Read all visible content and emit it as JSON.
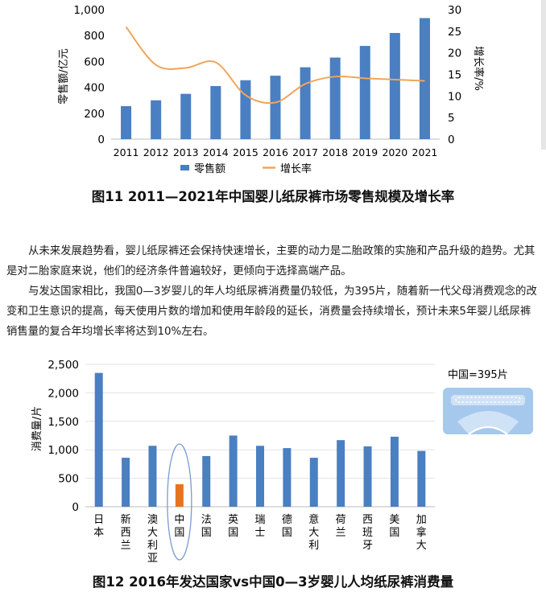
{
  "figure1": {
    "caption": "图11  2011—2021年中国婴儿纸尿裤市场零售规模及增长率",
    "chart_data": {
      "type": "bar",
      "categories": [
        "2011",
        "2012",
        "2013",
        "2014",
        "2015",
        "2016",
        "2017",
        "2018",
        "2019",
        "2020",
        "2021"
      ],
      "series": [
        {
          "name": "零售额",
          "type": "bar",
          "axis": "left",
          "color": "#4a7fc1",
          "values": [
            255,
            300,
            350,
            410,
            455,
            490,
            555,
            630,
            720,
            820,
            935
          ]
        },
        {
          "name": "增长率",
          "type": "line",
          "axis": "right",
          "color": "#f0a55a",
          "values": [
            26.0,
            17.2,
            16.5,
            17.8,
            10.2,
            8.5,
            12.8,
            14.5,
            14.1,
            13.8,
            13.5
          ]
        }
      ],
      "ylabel_left": "零售额/亿元",
      "ylabel_right": "增长率/%",
      "ylim_left": [
        0,
        1000
      ],
      "ylim_right": [
        0,
        30
      ],
      "yticks_left": [
        "0",
        "200",
        "400",
        "600",
        "800",
        "1,000"
      ],
      "yticks_right": [
        "0",
        "5",
        "10",
        "15",
        "20",
        "25",
        "30"
      ],
      "legend_position": "bottom"
    }
  },
  "body_paragraphs": [
    "从未来发展趋势看，婴儿纸尿裤还会保持快速增长，主要的动力是二胎政策的实施和产品升级的趋势。尤其是对二胎家庭来说，他们的经济条件普遍较好，更倾向于选择高端产品。",
    "与发达国家相比，我国0—3岁婴儿的年人均纸尿裤消费量仍较低，为395片，随着新一代父母消费观念的改变和卫生意识的提高，每天使用片数的增加和使用年龄段的延长，消费量会持续增长，预计未来5年婴儿纸尿裤销售量的复合年均增长率将达到10%左右。"
  ],
  "figure2": {
    "caption": "图12  2016年发达国家vs中国0—3岁婴儿人均纸尿裤消费量",
    "annotation": "中国=395片",
    "chart_data": {
      "type": "bar",
      "categories": [
        "日本",
        "新西兰",
        "澳大利亚",
        "中国",
        "法国",
        "英国",
        "瑞士",
        "德国",
        "意大利",
        "荷兰",
        "西班牙",
        "美国",
        "加拿大"
      ],
      "values": [
        2350,
        860,
        1070,
        395,
        890,
        1250,
        1070,
        1030,
        860,
        1170,
        1060,
        1230,
        980
      ],
      "highlight_category": "中国",
      "bar_color": "#4a7fc1",
      "highlight_color": "#e8731f",
      "ylabel": "消费量/片",
      "ylim": [
        0,
        2500
      ],
      "yticks": [
        "0",
        "500",
        "1,000",
        "1,500",
        "2,000",
        "2,500"
      ]
    }
  }
}
